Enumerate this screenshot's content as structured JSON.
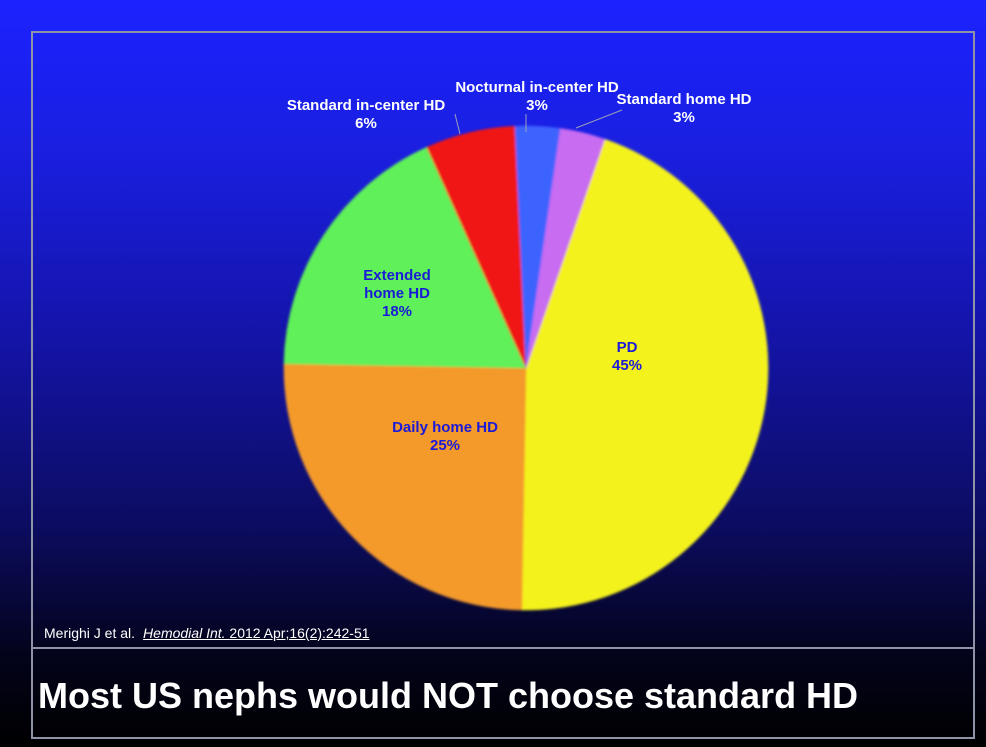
{
  "chart_data": {
    "type": "pie",
    "title": "",
    "categories": [
      "PD",
      "Daily home HD",
      "Extended home HD",
      "Standard in-center HD",
      "Nocturnal in-center HD",
      "Standard home HD"
    ],
    "values": [
      45,
      25,
      18,
      6,
      3,
      3
    ],
    "value_labels": [
      "45%",
      "25%",
      "18%",
      "6%",
      "3%",
      "3%"
    ],
    "colors": [
      "#f4f21c",
      "#f49a2c",
      "#5ff05a",
      "#f01616",
      "#3c63ff",
      "#c86cf2"
    ],
    "label_colors": [
      "#1a1ad8",
      "#1a1ad8",
      "#1a1ad8",
      "#ffffff",
      "#ffffff",
      "#ffffff"
    ],
    "start_angle_deg": 19,
    "legend": "none",
    "slice_labels": "on-chart"
  },
  "citation": {
    "authors": "Merighi J et al.",
    "journal": "Hemodial Int.",
    "reference": " 2012 Apr;16(2):242-51"
  },
  "slide": {
    "title": "Most US nephs would NOT choose standard HD"
  }
}
